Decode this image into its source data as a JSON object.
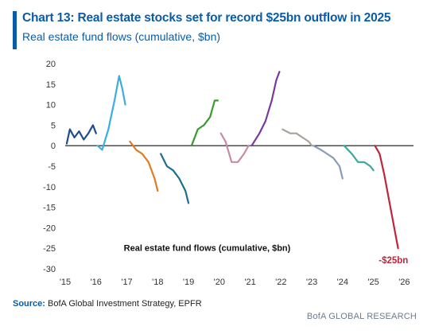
{
  "header": {
    "title": "Chart 13: Real estate stocks set for record $25bn outflow in 2025",
    "subtitle": "Real estate fund flows (cumulative, $bn)"
  },
  "footer": {
    "source_label": "Source:",
    "source_text": "BofA Global Investment Strategy, EPFR",
    "brand": "BofA GLOBAL RESEARCH"
  },
  "chart_data": {
    "type": "line",
    "inset_label": "Real estate fund flows (cumulative, $bn)",
    "annotation": "-$25bn",
    "ylim": [
      -30,
      20
    ],
    "yticks": [
      20,
      15,
      10,
      5,
      0,
      -5,
      -10,
      -15,
      -20,
      -25,
      -30
    ],
    "xlim": [
      2015,
      2026.3
    ],
    "xticks": [
      "'15",
      "'16",
      "'17",
      "'18",
      "'19",
      "'20",
      "'21",
      "'22",
      "'23",
      "'24",
      "'25",
      "'26"
    ],
    "xtick_values": [
      2015,
      2016,
      2017,
      2018,
      2019,
      2020,
      2021,
      2022,
      2023,
      2024,
      2025,
      2026
    ],
    "zero_line": true,
    "series": [
      {
        "color": "#1f4e8c",
        "x": [
          2015.05,
          2015.15,
          2015.3,
          2015.45,
          2015.6,
          2015.75,
          2015.9,
          2016.0
        ],
        "y": [
          0.5,
          4,
          2,
          3.5,
          1.5,
          3,
          5,
          3
        ]
      },
      {
        "color": "#3aaee0",
        "x": [
          2016.05,
          2016.2,
          2016.4,
          2016.6,
          2016.75,
          2016.85,
          2016.95
        ],
        "y": [
          0,
          -1,
          4,
          11,
          17,
          14,
          10
        ]
      },
      {
        "color": "#e07b1f",
        "x": [
          2017.1,
          2017.3,
          2017.5,
          2017.7,
          2017.9,
          2018.0
        ],
        "y": [
          1,
          -1,
          -2,
          -4,
          -8,
          -11
        ]
      },
      {
        "color": "#1f6e8c",
        "x": [
          2018.1,
          2018.3,
          2018.5,
          2018.7,
          2018.9,
          2019.0
        ],
        "y": [
          -2,
          -5,
          -6,
          -8,
          -11,
          -14
        ]
      },
      {
        "color": "#3a9a2e",
        "x": [
          2019.1,
          2019.3,
          2019.5,
          2019.7,
          2019.85,
          2019.95
        ],
        "y": [
          0,
          4,
          5,
          7,
          11,
          11
        ]
      },
      {
        "color": "#c98aa8",
        "x": [
          2020.05,
          2020.2,
          2020.4,
          2020.6,
          2020.8,
          2020.95
        ],
        "y": [
          3,
          1,
          -4,
          -4,
          -2,
          0
        ]
      },
      {
        "color": "#7a3a9a",
        "x": [
          2021.05,
          2021.3,
          2021.5,
          2021.7,
          2021.85,
          2021.95
        ],
        "y": [
          0,
          3,
          6,
          11,
          16,
          18
        ]
      },
      {
        "color": "#a8a29a",
        "x": [
          2022.05,
          2022.3,
          2022.5,
          2022.7,
          2022.9,
          2023.0
        ],
        "y": [
          4,
          3,
          3,
          2,
          1,
          0
        ]
      },
      {
        "color": "#8a9ab8",
        "x": [
          2023.05,
          2023.3,
          2023.5,
          2023.7,
          2023.9,
          2024.0
        ],
        "y": [
          0,
          -1,
          -2,
          -3,
          -5,
          -8
        ]
      },
      {
        "color": "#3aa89a",
        "x": [
          2024.05,
          2024.3,
          2024.5,
          2024.7,
          2024.9,
          2025.0
        ],
        "y": [
          0,
          -2,
          -4,
          -4,
          -5,
          -6
        ]
      },
      {
        "color": "#c0243a",
        "x": [
          2025.05,
          2025.2,
          2025.35,
          2025.5,
          2025.65,
          2025.8
        ],
        "y": [
          0,
          -2,
          -7,
          -13,
          -19,
          -25
        ]
      }
    ]
  }
}
